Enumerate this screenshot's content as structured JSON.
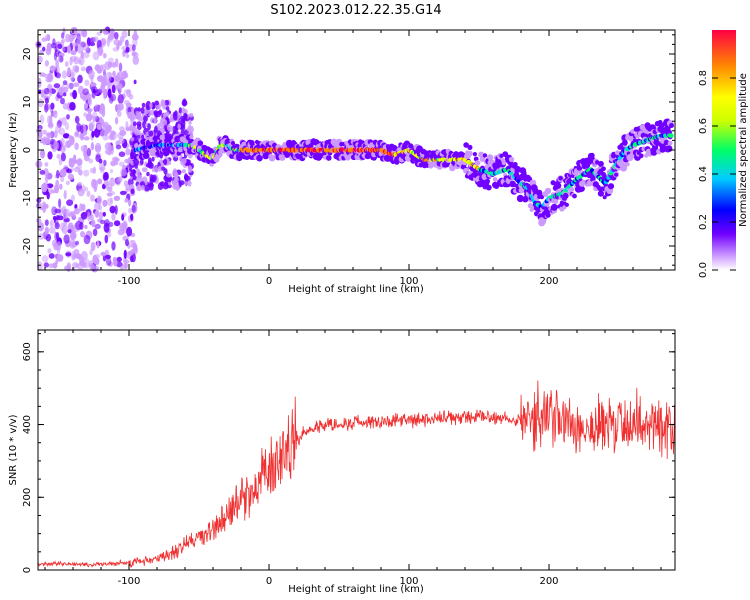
{
  "title": "S102.2023.012.22.35.G14",
  "colors": {
    "snr_line": "#f03030",
    "spectrogram_palette": [
      "#ffffff",
      "#cc99ff",
      "#7000ff",
      "#0000ff",
      "#00ccff",
      "#00ff66",
      "#ccff00",
      "#ffff00",
      "#ff8800",
      "#ff0044"
    ]
  },
  "chart_data": [
    {
      "type": "heatmap",
      "xlabel": "Height of straight line (km)",
      "ylabel": "Frequency (Hz)",
      "xlim": [
        -165,
        290
      ],
      "ylim": [
        -25,
        25
      ],
      "xticks": [
        -100,
        0,
        100,
        200
      ],
      "yticks": [
        -20,
        -10,
        0,
        10,
        20
      ],
      "grid": false,
      "colorbar": {
        "label": "Normalized spectral amplitude",
        "range": [
          0,
          1
        ],
        "ticks": [
          "0.0",
          "0.2",
          "0.4",
          "0.6",
          "0.8"
        ]
      },
      "ridge": {
        "x": [
          -95,
          -80,
          -70,
          -60,
          -55,
          -50,
          -45,
          -40,
          -35,
          -30,
          -25,
          -20,
          0,
          20,
          40,
          60,
          80,
          90,
          100,
          110,
          120,
          130,
          140,
          150,
          160,
          170,
          180,
          185,
          190,
          195,
          200,
          210,
          220,
          230,
          240,
          250,
          255,
          260,
          270,
          280,
          290
        ],
        "y": [
          0,
          1,
          1,
          1,
          1,
          0,
          -1,
          -2,
          1,
          1,
          0,
          0,
          0,
          0,
          0,
          0,
          0,
          -1,
          0,
          -2,
          -2,
          -2,
          -2,
          -4,
          -5,
          -4,
          -7,
          -8,
          -11,
          -12,
          -10,
          -9,
          -6,
          -4,
          -7,
          -2,
          0,
          1,
          2,
          3,
          3
        ]
      }
    },
    {
      "type": "line",
      "xlabel": "Height of straight line (km)",
      "ylabel": "SNR (10 * v/v)",
      "xlim": [
        -165,
        290
      ],
      "ylim": [
        0,
        660
      ],
      "xticks": [
        -100,
        0,
        100,
        200
      ],
      "yticks": [
        0,
        200,
        400,
        600
      ],
      "grid": false,
      "series": [
        {
          "x": [
            -165,
            -150,
            -140,
            -120,
            -100,
            -80,
            -70,
            -60,
            -50,
            -40,
            -30,
            -20,
            -10,
            0,
            10,
            20,
            30,
            40,
            60,
            80,
            100,
            120,
            140,
            160,
            180,
            200,
            220,
            240,
            260,
            280,
            290
          ],
          "y": [
            15,
            20,
            15,
            15,
            20,
            30,
            45,
            70,
            90,
            110,
            150,
            190,
            230,
            270,
            320,
            360,
            390,
            400,
            405,
            410,
            410,
            415,
            420,
            420,
            415,
            420,
            400,
            390,
            410,
            400,
            395
          ]
        }
      ]
    }
  ]
}
